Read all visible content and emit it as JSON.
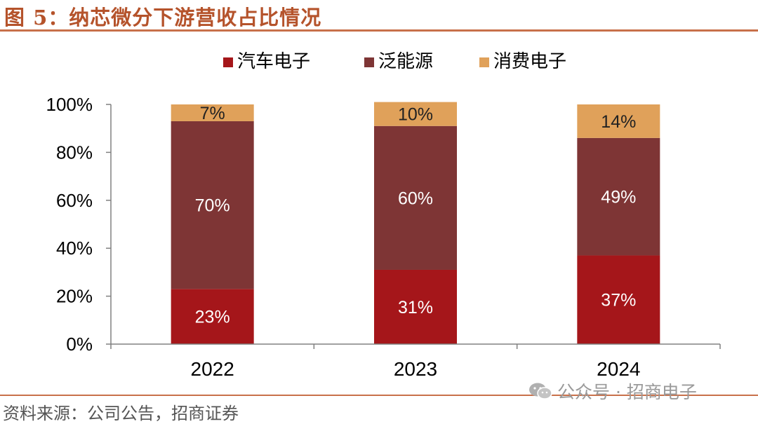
{
  "figure": {
    "title": "图 5：纳芯微分下游营收占比情况",
    "source": "资料来源：公司公告，招商证券",
    "watermark": "公众号 · 招商电子",
    "watermark_icon": "wechat-icon"
  },
  "colors": {
    "title": "#b5532b",
    "rule": "#c8704a",
    "auto": "#a5161a",
    "energy": "#7e3535",
    "consumer": "#e0a15a"
  },
  "chart_data": {
    "type": "bar",
    "stacked": true,
    "categories": [
      "2022",
      "2023",
      "2024"
    ],
    "series": [
      {
        "name": "汽车电子",
        "values": [
          23,
          31,
          37
        ],
        "labels": [
          "23%",
          "31%",
          "37%"
        ],
        "color": "#a5161a"
      },
      {
        "name": "泛能源",
        "values": [
          70,
          60,
          49
        ],
        "labels": [
          "70%",
          "60%",
          "49%"
        ],
        "color": "#7e3535"
      },
      {
        "name": "消费电子",
        "values": [
          7,
          10,
          14
        ],
        "labels": [
          "7%",
          "10%",
          "14%"
        ],
        "color": "#e0a15a"
      }
    ],
    "ylim": [
      0,
      100
    ],
    "yticks": [
      "0%",
      "20%",
      "40%",
      "60%",
      "80%",
      "100%"
    ],
    "legend": "top",
    "grid": false
  }
}
